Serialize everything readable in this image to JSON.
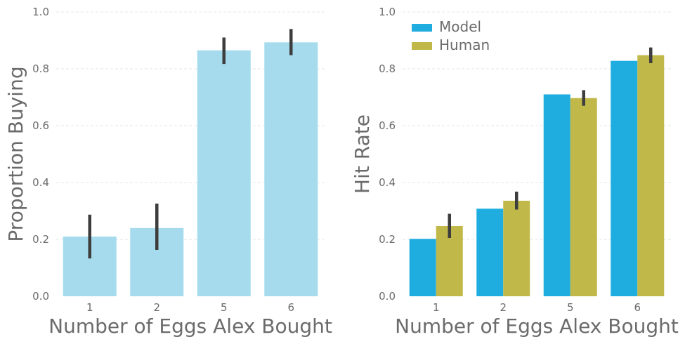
{
  "chart_data": [
    {
      "type": "bar",
      "categories": [
        "1",
        "2",
        "5",
        "6"
      ],
      "xlabel": "Number of Eggs Alex Bought",
      "ylabel": "Proportion Buying",
      "ylim": [
        0,
        1.0
      ],
      "yticks": [
        "0.0",
        "0.2",
        "0.4",
        "0.6",
        "0.8",
        "1.0"
      ],
      "grid": true,
      "series": [
        {
          "values": [
            0.21,
            0.24,
            0.865,
            0.893
          ],
          "error_low": [
            0.133,
            0.163,
            0.817,
            0.848
          ],
          "error_high": [
            0.287,
            0.326,
            0.91,
            0.94
          ],
          "color": "#a6dbee"
        }
      ]
    },
    {
      "type": "bar",
      "categories": [
        "1",
        "2",
        "5",
        "6"
      ],
      "xlabel": "Number of Eggs Alex Bought",
      "ylabel": "Hit Rate",
      "ylim": [
        0,
        1.0
      ],
      "yticks": [
        "0.0",
        "0.2",
        "0.4",
        "0.6",
        "0.8",
        "1.0"
      ],
      "grid": true,
      "legend_position": "top-left",
      "series": [
        {
          "name": "Model",
          "values": [
            0.202,
            0.308,
            0.71,
            0.828
          ],
          "color": "#1fade0"
        },
        {
          "name": "Human",
          "values": [
            0.247,
            0.336,
            0.697,
            0.848
          ],
          "error_low": [
            0.205,
            0.305,
            0.67,
            0.82
          ],
          "error_high": [
            0.29,
            0.368,
            0.725,
            0.875
          ],
          "color": "#c1b84a"
        }
      ]
    }
  ]
}
